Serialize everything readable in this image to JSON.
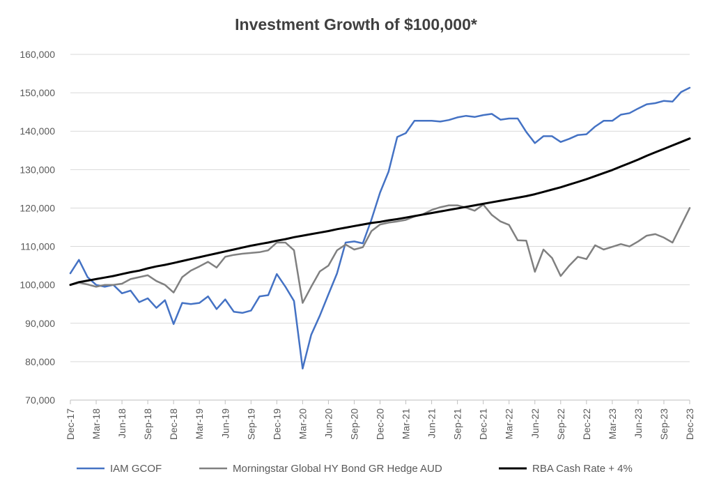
{
  "chart_data": {
    "type": "line",
    "title": "Investment Growth of $100,000*",
    "xlabel": "",
    "ylabel": "",
    "ylim": [
      70000,
      160000
    ],
    "ytick_values": [
      70000,
      80000,
      90000,
      100000,
      110000,
      120000,
      130000,
      140000,
      150000,
      160000
    ],
    "ytick_labels": [
      "70,000",
      "80,000",
      "90,000",
      "100,000",
      "110,000",
      "120,000",
      "130,000",
      "140,000",
      "150,000",
      "160,000"
    ],
    "x_labels": [
      "Dec-17",
      "Mar-18",
      "Jun-18",
      "Sep-18",
      "Dec-18",
      "Mar-19",
      "Jun-19",
      "Sep-19",
      "Dec-19",
      "Mar-20",
      "Jun-20",
      "Sep-20",
      "Dec-20",
      "Mar-21",
      "Jun-21",
      "Sep-21",
      "Dec-21",
      "Mar-22",
      "Jun-22",
      "Sep-22",
      "Dec-22",
      "Mar-23",
      "Jun-23",
      "Sep-23",
      "Dec-23"
    ],
    "x_label_step": 3,
    "grid": true,
    "legend_position": "bottom",
    "series": [
      {
        "name": "IAM GCOF",
        "color": "#4472C4",
        "values": [
          103000,
          106500,
          102000,
          100000,
          99500,
          100000,
          97800,
          98500,
          95500,
          96500,
          94000,
          96000,
          89800,
          95300,
          95000,
          95300,
          97000,
          93700,
          96200,
          93000,
          92700,
          93300,
          97000,
          97300,
          102800,
          99500,
          95800,
          78200,
          87000,
          92000,
          97500,
          103000,
          111000,
          111300,
          110800,
          117000,
          124000,
          129500,
          138500,
          139500,
          142700,
          142700,
          142700,
          142500,
          142900,
          143600,
          144000,
          143700,
          144200,
          144500,
          143000,
          143300,
          143300,
          139800,
          136900,
          138700,
          138700,
          137200,
          138000,
          139000,
          139200,
          141200,
          142700,
          142700,
          144300,
          144700,
          145900,
          147000,
          147300,
          147900,
          147700,
          150200,
          151300
        ]
      },
      {
        "name": "Morningstar Global HY Bond GR Hedge AUD",
        "color": "#808080",
        "values": [
          100000,
          100600,
          100100,
          99500,
          100000,
          100000,
          100300,
          101500,
          102000,
          102500,
          101000,
          100000,
          98000,
          102000,
          103700,
          104800,
          106000,
          104500,
          107300,
          107800,
          108100,
          108300,
          108500,
          109000,
          111000,
          111000,
          109000,
          95300,
          99500,
          103500,
          105000,
          109000,
          110500,
          109200,
          109800,
          114000,
          115700,
          116200,
          116500,
          116900,
          117800,
          118400,
          119500,
          120200,
          120700,
          120700,
          120100,
          119300,
          120900,
          118200,
          116500,
          115600,
          111600,
          111500,
          103400,
          109200,
          107000,
          102300,
          105000,
          107300,
          106700,
          110300,
          109200,
          109900,
          110600,
          110000,
          111300,
          112800,
          113200,
          112300,
          111000,
          115500,
          120000
        ]
      },
      {
        "name": "RBA Cash Rate + 4%",
        "color": "#000000",
        "values": [
          100000,
          100700,
          101100,
          101500,
          101900,
          102300,
          102800,
          103300,
          103700,
          104300,
          104800,
          105200,
          105700,
          106200,
          106700,
          107200,
          107700,
          108200,
          108700,
          109200,
          109700,
          110200,
          110600,
          111000,
          111500,
          111900,
          112400,
          112800,
          113200,
          113600,
          114000,
          114500,
          114900,
          115300,
          115700,
          116100,
          116400,
          116800,
          117100,
          117500,
          117900,
          118300,
          118700,
          119100,
          119500,
          119900,
          120300,
          120700,
          121100,
          121500,
          121900,
          122300,
          122700,
          123100,
          123600,
          124200,
          124800,
          125400,
          126100,
          126800,
          127500,
          128300,
          129100,
          129900,
          130800,
          131700,
          132600,
          133600,
          134500,
          135400,
          136300,
          137200,
          138100
        ]
      }
    ]
  }
}
